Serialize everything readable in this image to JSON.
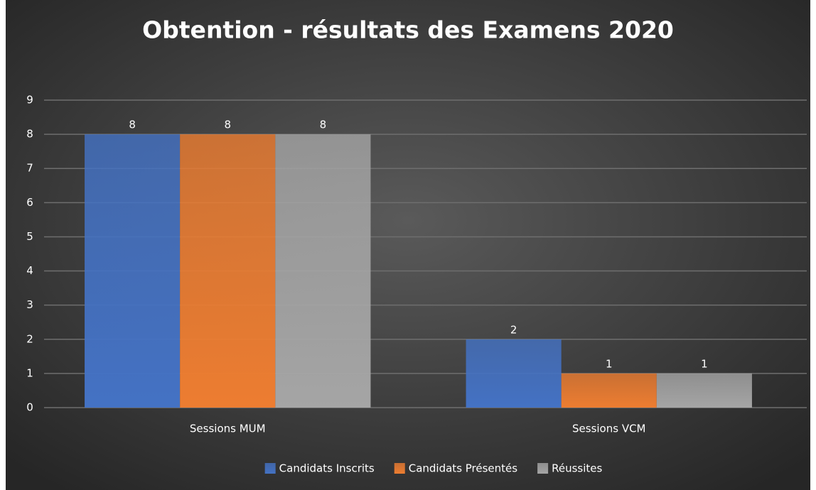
{
  "chart_data": {
    "type": "bar",
    "title": "Obtention - résultats des Examens 2020",
    "categories": [
      "Sessions MUM",
      "Sessions VCM"
    ],
    "series": [
      {
        "name": "Candidats Inscrits",
        "color": "#4472c4",
        "values": [
          8,
          2
        ]
      },
      {
        "name": "Candidats Présentés",
        "color": "#ed7d31",
        "values": [
          8,
          1
        ]
      },
      {
        "name": "Réussites",
        "color": "#a5a5a5",
        "values": [
          8,
          1
        ]
      }
    ],
    "ylim": [
      0,
      9
    ],
    "yticks": [
      0,
      1,
      2,
      3,
      4,
      5,
      6,
      7,
      8,
      9
    ],
    "grid": true,
    "legend": "bottom"
  }
}
